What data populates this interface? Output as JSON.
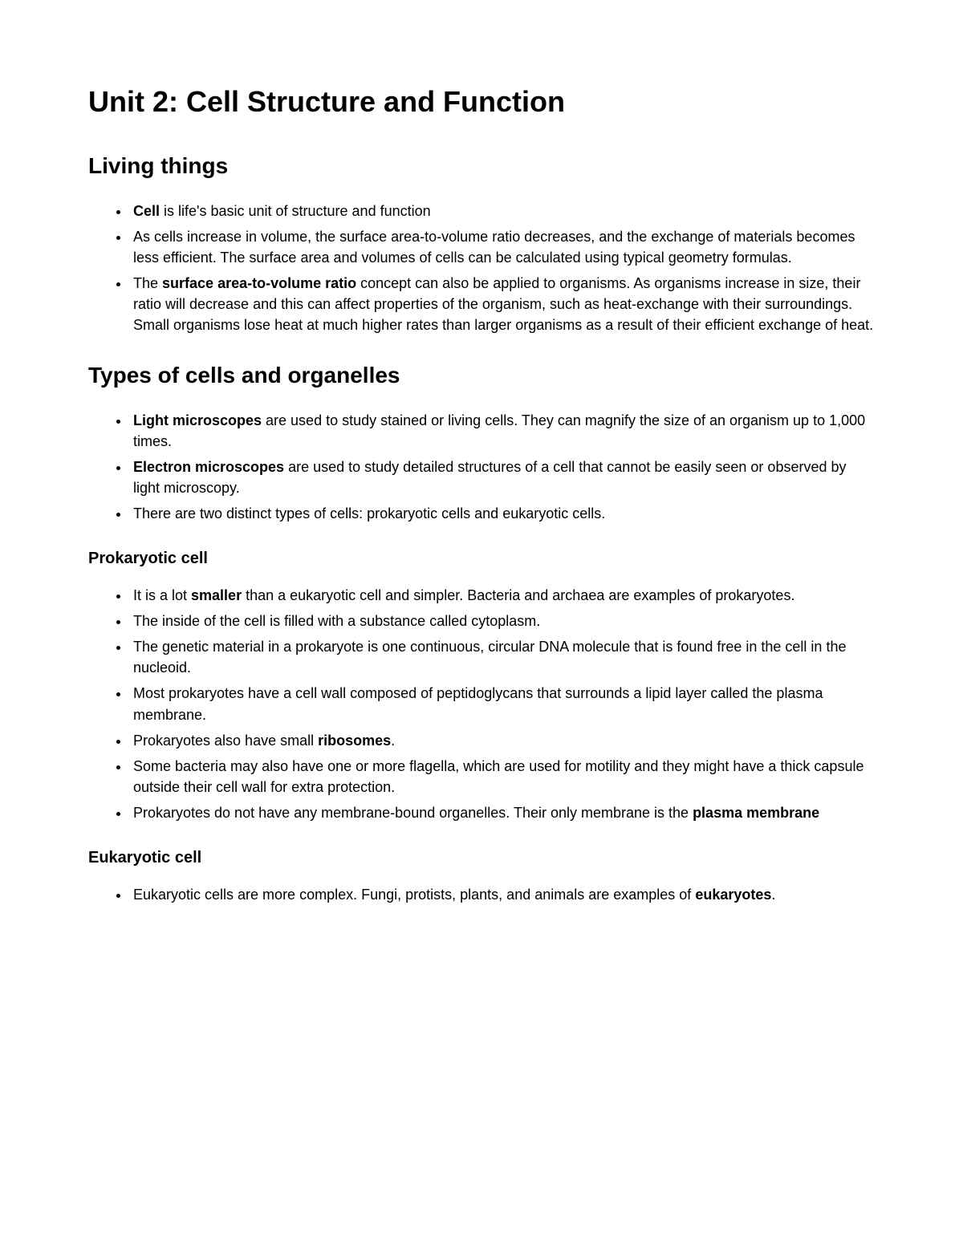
{
  "title": "Unit 2: Cell Structure and Function",
  "sections": [
    {
      "heading": "Living things",
      "items": [
        {
          "spans": [
            {
              "text": "Cell",
              "bold": true
            },
            {
              "text": " is life's basic unit of structure and function",
              "bold": false
            }
          ]
        },
        {
          "spans": [
            {
              "text": "As cells increase in volume, the surface area-to-volume ratio decreases, and the exchange of materials becomes less efficient. The surface area and volumes of cells can be calculated using typical geometry formulas.",
              "bold": false
            }
          ]
        },
        {
          "spans": [
            {
              "text": "The ",
              "bold": false
            },
            {
              "text": "surface area-to-volume ratio",
              "bold": true
            },
            {
              "text": " concept can also be applied to organisms. As organisms increase in size, their ratio will decrease and this can affect properties of the organism, such as heat-exchange with their surroundings. Small organisms lose heat at much higher rates than larger organisms as a result of their efficient exchange of heat.",
              "bold": false
            }
          ]
        }
      ]
    },
    {
      "heading": "Types of cells and organelles",
      "items": [
        {
          "spans": [
            {
              "text": "Light microscopes",
              "bold": true
            },
            {
              "text": " are used to study stained or living cells. They can magnify the size of an organism up to 1,000 times.",
              "bold": false
            }
          ]
        },
        {
          "spans": [
            {
              "text": "Electron microscopes",
              "bold": true
            },
            {
              "text": " are used to study detailed structures of a cell that cannot be easily seen or observed by light microscopy.",
              "bold": false
            }
          ]
        },
        {
          "spans": [
            {
              "text": "There are two distinct types of cells: prokaryotic cells and eukaryotic cells.",
              "bold": false
            }
          ]
        }
      ],
      "subsections": [
        {
          "heading": "Prokaryotic cell",
          "items": [
            {
              "spans": [
                {
                  "text": "It is a lot ",
                  "bold": false
                },
                {
                  "text": "smaller",
                  "bold": true
                },
                {
                  "text": " than a eukaryotic cell and simpler. Bacteria and archaea are examples of prokaryotes.",
                  "bold": false
                }
              ]
            },
            {
              "spans": [
                {
                  "text": "The inside of the cell is filled with a substance called cytoplasm.",
                  "bold": false
                }
              ]
            },
            {
              "spans": [
                {
                  "text": "The genetic material in a prokaryote is one continuous, circular DNA molecule that is found free in the cell in the nucleoid.",
                  "bold": false
                }
              ]
            },
            {
              "spans": [
                {
                  "text": "Most prokaryotes have a cell wall composed of peptidoglycans that surrounds a lipid layer called the plasma membrane.",
                  "bold": false
                }
              ]
            },
            {
              "spans": [
                {
                  "text": "Prokaryotes also have small ",
                  "bold": false
                },
                {
                  "text": "ribosomes",
                  "bold": true
                },
                {
                  "text": ".",
                  "bold": false
                }
              ]
            },
            {
              "spans": [
                {
                  "text": "Some bacteria may also have one or more flagella, which are used for motility and they might have a thick capsule outside their cell wall for extra protection.",
                  "bold": false
                }
              ]
            },
            {
              "spans": [
                {
                  "text": "Prokaryotes do not have any membrane-bound organelles. Their only membrane is the ",
                  "bold": false
                },
                {
                  "text": "plasma membrane",
                  "bold": true
                }
              ]
            }
          ]
        },
        {
          "heading": "Eukaryotic cell",
          "items": [
            {
              "spans": [
                {
                  "text": "Eukaryotic cells are more complex. Fungi, protists, plants, and animals are examples of ",
                  "bold": false
                },
                {
                  "text": "eukaryotes",
                  "bold": true
                },
                {
                  "text": ".",
                  "bold": false
                }
              ]
            }
          ]
        }
      ]
    }
  ]
}
